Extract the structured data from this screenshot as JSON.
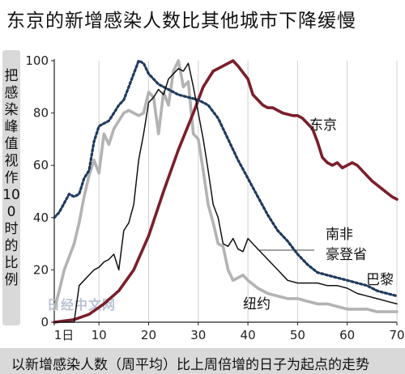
{
  "chart_data": {
    "type": "line",
    "title": "东京的新增感染人数比其他城市下降缓慢",
    "ylabel": "把感染峰值视作100时的比例",
    "xlabel": "以新增感染人数（周平均）比上周倍增的日子为起点的走势",
    "xlim": [
      1,
      70
    ],
    "ylim": [
      0,
      100
    ],
    "x_ticks": [
      {
        "value": 1,
        "label": "1日"
      },
      {
        "value": 10,
        "label": "10"
      },
      {
        "value": 20,
        "label": "20"
      },
      {
        "value": 30,
        "label": "30"
      },
      {
        "value": 40,
        "label": "40"
      },
      {
        "value": 50,
        "label": "50"
      },
      {
        "value": 60,
        "label": "60"
      },
      {
        "value": 70,
        "label": "70"
      }
    ],
    "y_ticks": [
      0,
      20,
      40,
      60,
      80,
      100
    ],
    "grid": "vertical",
    "watermark": "日经中文网",
    "series": [
      {
        "name": "东京",
        "color": "#7a1f2b",
        "style": "solid",
        "x": [
          1,
          5,
          8,
          11,
          14,
          17,
          20,
          23,
          26,
          29,
          31,
          33,
          35,
          37,
          38,
          40,
          41,
          42,
          43,
          44,
          45,
          47,
          49,
          50,
          51,
          53,
          54,
          55,
          56,
          57,
          58,
          59,
          60,
          61,
          62,
          63,
          65,
          67,
          69,
          70
        ],
        "y": [
          0,
          1,
          3,
          7,
          12,
          20,
          33,
          50,
          66,
          80,
          90,
          96,
          98,
          100,
          98,
          93,
          87,
          85,
          83,
          82,
          82,
          80,
          79,
          79,
          78,
          74,
          69,
          63,
          61,
          60,
          61,
          59,
          60,
          61,
          60,
          58,
          54,
          51,
          48,
          47
        ]
      },
      {
        "name": "巴黎",
        "color": "#1f3a5f",
        "style": "dotted",
        "x": [
          1,
          2,
          4,
          5,
          6,
          7,
          8,
          9,
          10,
          11,
          12,
          13,
          14,
          15,
          16,
          17,
          18,
          19,
          20,
          22,
          24,
          26,
          28,
          30,
          32,
          34,
          36,
          38,
          40,
          42,
          44,
          46,
          48,
          50,
          52,
          54,
          56,
          58,
          60,
          62,
          64,
          66,
          68,
          70
        ],
        "y": [
          40,
          42,
          49,
          48,
          49,
          55,
          58,
          69,
          75,
          76,
          77,
          80,
          83,
          85,
          90,
          95,
          100,
          99,
          95,
          91,
          89,
          87,
          86,
          85,
          83,
          78,
          70,
          62,
          55,
          48,
          41,
          35,
          31,
          26,
          22,
          19,
          18,
          17,
          16,
          15,
          14,
          12,
          11,
          10
        ]
      },
      {
        "name": "纽约",
        "color": "#111111",
        "style": "solid",
        "x": [
          1,
          3,
          5,
          6,
          7,
          8,
          9,
          10,
          11,
          12,
          13,
          14,
          15,
          16,
          17,
          18,
          19,
          20,
          21,
          22,
          23,
          24,
          25,
          26,
          27,
          28,
          29,
          30,
          31,
          32,
          33,
          34,
          35,
          36,
          37,
          38,
          39,
          40,
          42,
          44,
          46,
          48,
          50,
          52,
          54,
          56,
          58,
          60,
          62,
          64,
          66,
          68,
          70
        ],
        "y": [
          0,
          0,
          0,
          14,
          16,
          18,
          20,
          21,
          23,
          24,
          26,
          20,
          35,
          38,
          45,
          62,
          72,
          84,
          86,
          89,
          87,
          93,
          95,
          97,
          96,
          99,
          90,
          80,
          70,
          58,
          45,
          40,
          30,
          29,
          32,
          28,
          27,
          32,
          28,
          24,
          20,
          16,
          15,
          15,
          15,
          14,
          14,
          13,
          11,
          10,
          9,
          8,
          7
        ]
      },
      {
        "name": "南非豪登省",
        "color": "#b3b3b3",
        "style": "solid",
        "x": [
          1,
          2,
          3,
          4,
          5,
          6,
          7,
          8,
          9,
          10,
          11,
          12,
          13,
          14,
          15,
          16,
          17,
          18,
          19,
          20,
          21,
          22,
          23,
          24,
          25,
          26,
          27,
          28,
          29,
          30,
          31,
          32,
          33,
          34,
          35,
          36,
          37,
          38,
          39,
          40,
          42,
          44,
          46,
          48,
          50,
          52,
          54,
          56,
          58,
          60,
          62,
          64,
          66,
          68,
          70
        ],
        "y": [
          5,
          12,
          20,
          25,
          30,
          38,
          48,
          56,
          62,
          57,
          72,
          68,
          74,
          77,
          80,
          81,
          80,
          79,
          80,
          88,
          86,
          72,
          88,
          83,
          96,
          100,
          90,
          92,
          72,
          70,
          58,
          45,
          38,
          30,
          29,
          20,
          16,
          17,
          18,
          16,
          13,
          11,
          10,
          9,
          9,
          8,
          7,
          7,
          6,
          5,
          5,
          5,
          4,
          4,
          4
        ]
      }
    ],
    "labels": {
      "tokyo": "东京",
      "paris": "巴黎",
      "newyork": "纽约",
      "gauteng_line1": "南非",
      "gauteng_line2": "豪登省"
    }
  }
}
